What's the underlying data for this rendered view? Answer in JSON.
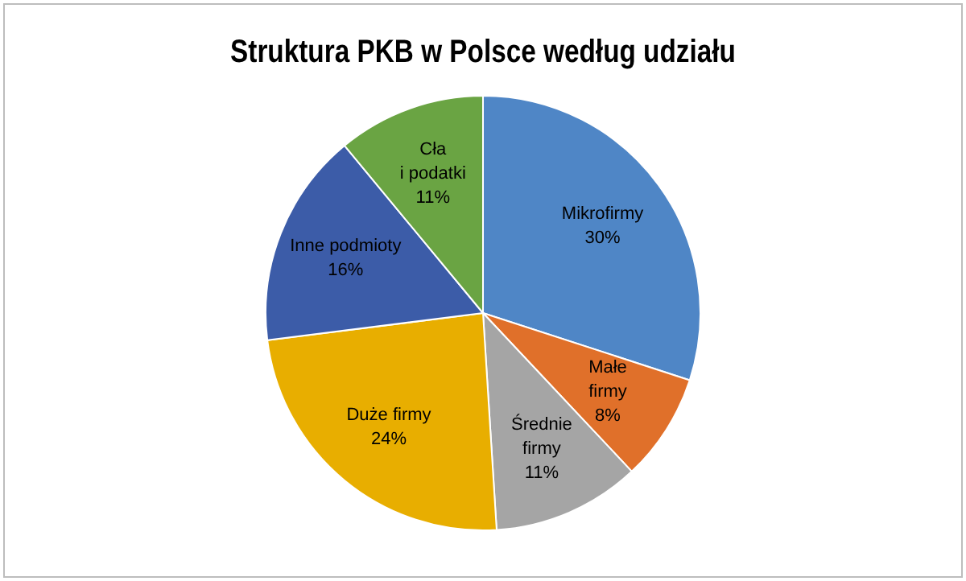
{
  "chart_data": {
    "type": "pie",
    "title": "Struktura PKB w Polsce według udziału",
    "categories": [
      "Mikrofirmy",
      "Małe firmy",
      "Średnie firmy",
      "Duże firmy",
      "Inne podmioty",
      "Cła i podatki"
    ],
    "values": [
      30,
      8,
      11,
      24,
      16,
      11
    ],
    "value_labels": [
      "30%",
      "8%",
      "11%",
      "24%",
      "16%",
      "11%"
    ],
    "colors": [
      "#4f86c6",
      "#e0702a",
      "#a5a5a5",
      "#e8ae00",
      "#3c5ca8",
      "#6aa443"
    ],
    "legend": false
  }
}
